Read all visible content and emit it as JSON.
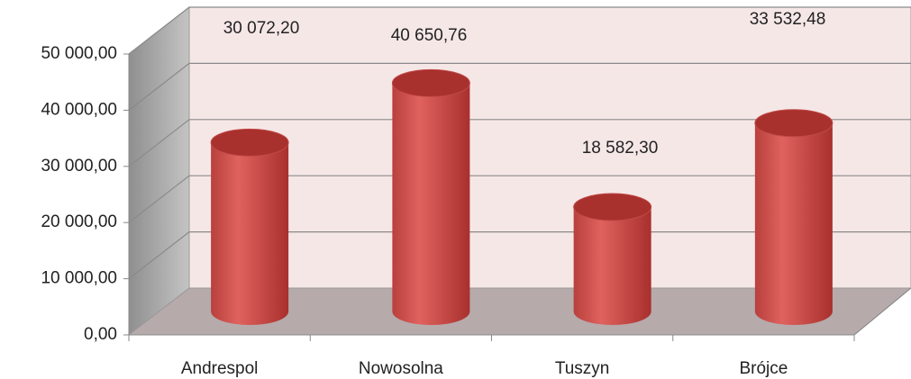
{
  "chart_data": {
    "type": "bar",
    "categories": [
      "Andrespol",
      "Nowosolna",
      "Tuszyn",
      "Brójce"
    ],
    "values": [
      30072.2,
      40650.76,
      18582.3,
      33532.48
    ],
    "value_labels": [
      "30 072,20",
      "40 650,76",
      "18 582,30",
      "33 532,48"
    ],
    "color": "#c0504d",
    "ylim": [
      0,
      50000
    ],
    "yticks": [
      {
        "value": 0,
        "label": "0,00"
      },
      {
        "value": 10000,
        "label": "10 000,00"
      },
      {
        "value": 20000,
        "label": "20 000,00"
      },
      {
        "value": 30000,
        "label": "30 000,00"
      },
      {
        "value": 40000,
        "label": "40 000,00"
      },
      {
        "value": 50000,
        "label": "50 000,00"
      }
    ],
    "grid": true
  }
}
